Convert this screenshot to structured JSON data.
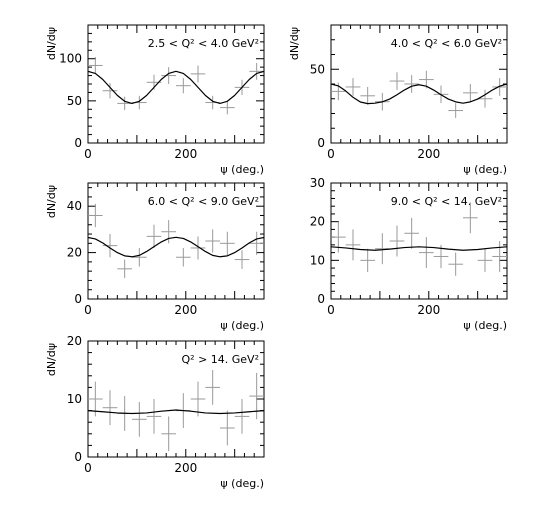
{
  "colors": {
    "curve": "#000000",
    "points": "#9a9a9a",
    "frame": "#000000"
  },
  "chart_data": [
    {
      "type": "scatter",
      "title": "2.5 < Q² < 4.0 GeV²",
      "xlabel": "ψ (deg.)",
      "ylabel": "dN/dψ",
      "xlim": [
        0,
        360
      ],
      "ylim": [
        0,
        140
      ],
      "xticks": [
        0,
        200
      ],
      "yticks": [
        0,
        50,
        100
      ],
      "grid": false,
      "series": [
        {
          "type": "scatter",
          "x": [
            15,
            45,
            75,
            105,
            135,
            165,
            195,
            225,
            255,
            285,
            315,
            345
          ],
          "y": [
            92,
            62,
            47,
            48,
            72,
            80,
            68,
            82,
            48,
            42,
            66,
            85
          ],
          "xerr": 15,
          "yerr": [
            10,
            9,
            8,
            8,
            9,
            10,
            9,
            10,
            8,
            8,
            9,
            10
          ]
        },
        {
          "type": "line",
          "x": [
            0,
            15,
            30,
            45,
            60,
            75,
            90,
            105,
            120,
            135,
            150,
            165,
            180,
            195,
            210,
            225,
            240,
            255,
            270,
            285,
            300,
            315,
            330,
            345,
            360
          ],
          "y": [
            85,
            82.5,
            75.5,
            66,
            56.5,
            49.5,
            47,
            49.5,
            56.5,
            66,
            75.5,
            82.5,
            85,
            82.5,
            75.5,
            66,
            56.5,
            49.5,
            47,
            49.5,
            56.5,
            66,
            75.5,
            82.5,
            85
          ]
        }
      ]
    },
    {
      "type": "scatter",
      "title": "4.0 < Q² < 6.0 GeV²",
      "xlabel": "ψ (deg.)",
      "ylabel": "dN/dψ",
      "xlim": [
        0,
        360
      ],
      "ylim": [
        0,
        80
      ],
      "xticks": [
        0,
        200
      ],
      "yticks": [
        0,
        50
      ],
      "grid": false,
      "series": [
        {
          "type": "scatter",
          "x": [
            15,
            45,
            75,
            105,
            135,
            165,
            195,
            225,
            255,
            285,
            315,
            345
          ],
          "y": [
            35,
            38,
            32,
            28,
            42,
            40,
            43,
            33,
            22,
            34,
            30,
            38
          ],
          "xerr": 15,
          "yerr": [
            6,
            6,
            6,
            6,
            6,
            6,
            6,
            6,
            5,
            6,
            6,
            6
          ]
        },
        {
          "type": "line",
          "x": [
            0,
            15,
            30,
            45,
            60,
            75,
            90,
            105,
            120,
            135,
            150,
            165,
            180,
            195,
            210,
            225,
            240,
            255,
            270,
            285,
            300,
            315,
            330,
            345,
            360
          ],
          "y": [
            40,
            38.7,
            35.3,
            31,
            27.8,
            26.7,
            27,
            27.9,
            29.8,
            32.7,
            35.9,
            38.5,
            39.5,
            38.5,
            35.9,
            32.7,
            29.8,
            27.9,
            27,
            27.9,
            29.8,
            32.7,
            35.9,
            38.5,
            40
          ]
        }
      ]
    },
    {
      "type": "scatter",
      "title": "6.0 < Q² < 9.0 GeV²",
      "xlabel": "ψ (deg.)",
      "ylabel": "dN/dψ",
      "xlim": [
        0,
        360
      ],
      "ylim": [
        0,
        50
      ],
      "xticks": [
        0,
        200
      ],
      "yticks": [
        0,
        20,
        40
      ],
      "grid": false,
      "series": [
        {
          "type": "scatter",
          "x": [
            15,
            45,
            75,
            105,
            135,
            165,
            195,
            225,
            255,
            285,
            315,
            345
          ],
          "y": [
            36,
            23,
            13,
            18,
            27,
            29,
            18,
            22,
            25,
            24,
            17,
            24
          ],
          "xerr": 15,
          "yerr": [
            5,
            5,
            4,
            4,
            5,
            5,
            4,
            5,
            5,
            5,
            4,
            5
          ]
        },
        {
          "type": "line",
          "x": [
            0,
            15,
            30,
            45,
            60,
            75,
            90,
            105,
            120,
            135,
            150,
            165,
            180,
            195,
            210,
            225,
            240,
            255,
            270,
            285,
            300,
            315,
            330,
            345,
            360
          ],
          "y": [
            26.5,
            25.9,
            24.2,
            22,
            20,
            18.6,
            18.2,
            18.8,
            20.5,
            22.6,
            24.6,
            26.1,
            26.6,
            26.1,
            24.6,
            22.6,
            20.5,
            18.8,
            18.2,
            18.6,
            20,
            22,
            24.2,
            25.9,
            26.5
          ]
        }
      ]
    },
    {
      "type": "scatter",
      "title": "9.0 < Q² < 14. GeV²",
      "xlabel": "ψ (deg.)",
      "ylabel": "",
      "xlim": [
        0,
        360
      ],
      "ylim": [
        0,
        30
      ],
      "xticks": [
        0,
        200
      ],
      "yticks": [
        0,
        10,
        20,
        30
      ],
      "grid": false,
      "series": [
        {
          "type": "scatter",
          "x": [
            15,
            45,
            75,
            105,
            135,
            165,
            195,
            225,
            255,
            285,
            315,
            345
          ],
          "y": [
            16,
            14,
            10,
            13,
            15,
            17,
            12,
            11,
            9,
            21,
            10,
            11
          ],
          "xerr": 15,
          "yerr": [
            4,
            4,
            3,
            4,
            4,
            4,
            4,
            3,
            3,
            4,
            3,
            4
          ]
        },
        {
          "type": "line",
          "x": [
            0,
            30,
            60,
            90,
            120,
            150,
            180,
            210,
            240,
            270,
            300,
            330,
            360
          ],
          "y": [
            13.5,
            13.2,
            12.8,
            12.6,
            12.9,
            13.3,
            13.5,
            13.3,
            12.9,
            12.6,
            12.8,
            13.2,
            13.5
          ]
        }
      ]
    },
    {
      "type": "scatter",
      "title": "Q² > 14. GeV²",
      "xlabel": "ψ (deg.)",
      "ylabel": "dN/dψ",
      "xlim": [
        0,
        360
      ],
      "ylim": [
        0,
        20
      ],
      "xticks": [
        0,
        200
      ],
      "yticks": [
        0,
        10,
        20
      ],
      "grid": false,
      "series": [
        {
          "type": "scatter",
          "x": [
            15,
            45,
            75,
            105,
            135,
            165,
            195,
            225,
            255,
            285,
            315,
            345
          ],
          "y": [
            10,
            8.5,
            7.5,
            6.5,
            7,
            4,
            8,
            10,
            12,
            5,
            7,
            10.5
          ],
          "xerr": 15,
          "yerr": [
            3,
            3,
            3,
            3,
            3,
            3,
            3,
            3,
            3,
            3,
            3,
            4
          ]
        },
        {
          "type": "line",
          "x": [
            0,
            30,
            60,
            90,
            120,
            150,
            180,
            210,
            240,
            270,
            300,
            330,
            360
          ],
          "y": [
            8,
            7.8,
            7.6,
            7.5,
            7.6,
            7.9,
            8.1,
            7.9,
            7.6,
            7.5,
            7.6,
            7.8,
            8
          ]
        }
      ]
    }
  ]
}
